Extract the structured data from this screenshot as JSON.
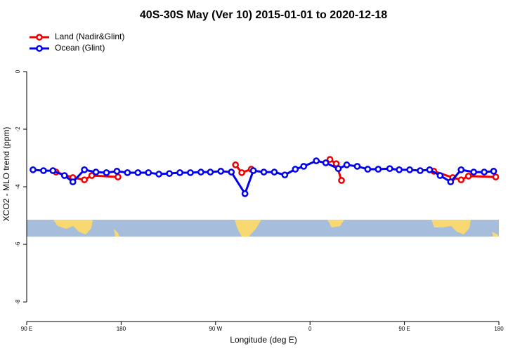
{
  "chart_data": {
    "type": "line",
    "title": "40S-30S May (Ver 10)   2015-01-01 to 2020-12-18",
    "xlabel": "Longitude (deg E)",
    "ylabel": "XCO2 - MLO trend (ppm)",
    "xlim": [
      90,
      540
    ],
    "ylim": [
      -8.68,
      1.56
    ],
    "xticks": [
      {
        "value": 90,
        "label": "90 E"
      },
      {
        "value": 180,
        "label": "180"
      },
      {
        "value": 270,
        "label": "90 W"
      },
      {
        "value": 360,
        "label": "0"
      },
      {
        "value": 450,
        "label": "90 E"
      },
      {
        "value": 540,
        "label": "180"
      }
    ],
    "yticks": [
      0,
      -2,
      -4,
      -6,
      -8
    ],
    "legend": "top-left",
    "series": [
      {
        "name": "Land (Nadir&Glint)",
        "color": "#ee0000",
        "x": [
          118,
          134,
          145,
          152,
          177,
          null,
          289,
          295,
          304,
          null,
          379,
          385,
          390,
          null,
          478,
          496,
          504,
          511,
          537
        ],
        "values": [
          -3.49,
          -3.68,
          -3.76,
          -3.61,
          -3.66,
          null,
          -3.24,
          -3.51,
          -3.39,
          null,
          -3.05,
          -3.2,
          -3.78,
          null,
          -3.46,
          -3.68,
          -3.76,
          -3.63,
          -3.66
        ]
      },
      {
        "name": "Ocean (Glint)",
        "color": "#0000ee",
        "x": [
          96,
          106,
          115,
          126,
          134,
          145,
          156,
          166,
          176,
          186,
          196,
          206,
          216,
          226,
          236,
          246,
          256,
          265,
          275,
          285,
          298,
          306,
          316,
          326,
          336,
          346,
          354,
          366,
          375,
          387,
          395,
          405,
          415,
          425,
          436,
          445,
          455,
          465,
          474,
          484,
          494,
          504,
          516,
          526,
          535
        ],
        "values": [
          -3.41,
          -3.44,
          -3.44,
          -3.61,
          -3.83,
          -3.41,
          -3.49,
          -3.51,
          -3.46,
          -3.51,
          -3.51,
          -3.51,
          -3.56,
          -3.54,
          -3.51,
          -3.51,
          -3.49,
          -3.49,
          -3.46,
          -3.49,
          -4.24,
          -3.44,
          -3.49,
          -3.49,
          -3.59,
          -3.39,
          -3.29,
          -3.1,
          -3.17,
          -3.37,
          -3.24,
          -3.29,
          -3.39,
          -3.39,
          -3.37,
          -3.41,
          -3.41,
          -3.44,
          -3.41,
          -3.61,
          -3.83,
          -3.41,
          -3.49,
          -3.49,
          -3.46
        ]
      }
    ]
  }
}
